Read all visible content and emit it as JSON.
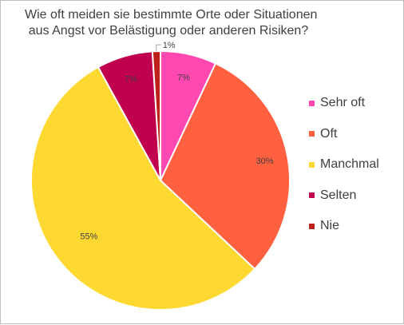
{
  "chart_data": {
    "type": "pie",
    "title_lines": [
      "Wie oft meiden sie bestimmte Orte oder Situationen",
      "aus Angst vor Belästigung oder anderen Risiken?"
    ],
    "categories": [
      "Sehr oft",
      "Oft",
      "Manchmal",
      "Selten",
      "Nie"
    ],
    "values": [
      7,
      30,
      55,
      7,
      1
    ],
    "data_labels": [
      "7%",
      "30%",
      "55%",
      "7%",
      "1%"
    ],
    "colors": [
      "#ff48b0",
      "#ff6040",
      "#ffd932",
      "#c0004e",
      "#c0201a"
    ],
    "legend_position": "right"
  }
}
